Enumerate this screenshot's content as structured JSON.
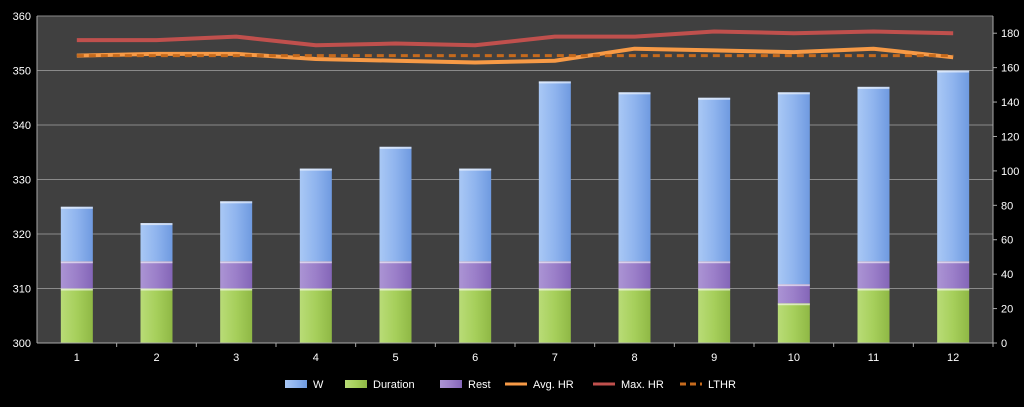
{
  "chart_data": {
    "type": "bar",
    "categories": [
      "1",
      "2",
      "3",
      "4",
      "5",
      "6",
      "7",
      "8",
      "9",
      "10",
      "11",
      "12"
    ],
    "left_axis": {
      "ylim": [
        300,
        360
      ],
      "ticks": [
        300,
        310,
        320,
        330,
        340,
        350,
        360
      ]
    },
    "right_axis": {
      "ylim": [
        0,
        190
      ],
      "ticks": [
        0,
        20,
        40,
        60,
        80,
        100,
        120,
        140,
        160,
        180
      ]
    },
    "stack_base": 300,
    "series": [
      {
        "name": "Duration",
        "kind": "stacked-bar",
        "axis": "left",
        "color": "#a6cf5b",
        "values": [
          10,
          10,
          10,
          10,
          10,
          10,
          10,
          10,
          10,
          7.3,
          10,
          10
        ]
      },
      {
        "name": "Rest",
        "kind": "stacked-bar",
        "axis": "left",
        "color": "#9b7fc9",
        "values": [
          5,
          5,
          5,
          5,
          5,
          5,
          5,
          5,
          5,
          3.5,
          5,
          5
        ]
      },
      {
        "name": "W",
        "kind": "stacked-bar",
        "axis": "left",
        "color": "#8fb4ee",
        "values": [
          10,
          7,
          11,
          17,
          21,
          17,
          33,
          31,
          30,
          35.2,
          32,
          35
        ]
      },
      {
        "name": "Avg. HR",
        "kind": "line",
        "axis": "right",
        "color": "#f79a46",
        "values": [
          167,
          168,
          168,
          165,
          164,
          163,
          164,
          171,
          170,
          169,
          171,
          166
        ]
      },
      {
        "name": "Max. HR",
        "kind": "line",
        "axis": "right",
        "color": "#c0504d",
        "values": [
          176,
          176,
          178,
          173,
          174,
          173,
          178,
          178,
          181,
          180,
          181,
          180
        ]
      },
      {
        "name": "LTHR",
        "kind": "dashed-line",
        "axis": "right",
        "color": "#c56a1d",
        "values": [
          167,
          167,
          167,
          167,
          167,
          167,
          167,
          167,
          167,
          167,
          167,
          167
        ]
      }
    ],
    "legend_position": "bottom",
    "legend": [
      "W",
      "Duration",
      "Rest",
      "Avg. HR",
      "Max. HR",
      "LTHR"
    ],
    "grid": true
  }
}
